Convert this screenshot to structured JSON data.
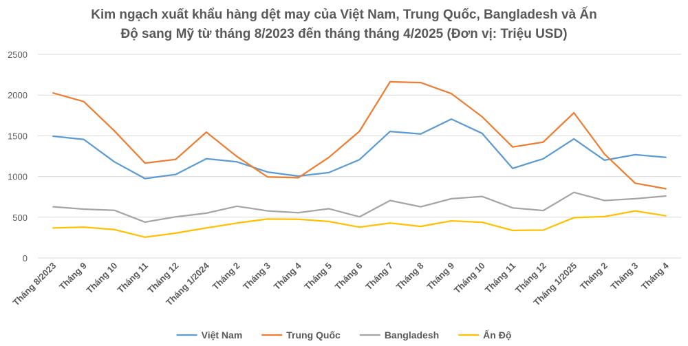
{
  "chart_data": {
    "type": "line",
    "title_line1": "Kim ngạch xuất khẩu hàng dệt may của Việt Nam, Trung Quốc, Bangladesh và Ấn",
    "title_line2": "Độ sang Mỹ từ tháng 8/2023 đến tháng tháng 4/2025 (Đơn vị: Triệu USD)",
    "xlabel": "",
    "ylabel": "",
    "ylim": [
      0,
      2500
    ],
    "yticks": [
      "0",
      "500",
      "1000",
      "1500",
      "2000",
      "2500"
    ],
    "ytick_values": [
      0,
      500,
      1000,
      1500,
      2000,
      2500
    ],
    "grid": true,
    "legend_position": "bottom",
    "categories": [
      "Tháng 8/2023",
      "Tháng 9",
      "Tháng 10",
      "Tháng 11",
      "Tháng 12",
      "Tháng 1/2024",
      "Tháng 2",
      "Tháng 3",
      "Tháng 4",
      "Tháng 5",
      "Tháng 6",
      "Tháng 7",
      "Tháng 8",
      "Tháng 9",
      "Tháng 10",
      "Tháng 11",
      "Tháng 12",
      "Tháng 1/2025",
      "Tháng 2",
      "Tháng 3",
      "Tháng 4"
    ],
    "series": [
      {
        "name": "Việt Nam",
        "color": "#5b9bd5",
        "values": [
          1495,
          1455,
          1180,
          975,
          1025,
          1218,
          1180,
          1055,
          1005,
          1048,
          1207,
          1553,
          1522,
          1705,
          1530,
          1100,
          1218,
          1462,
          1200,
          1268,
          1235
        ]
      },
      {
        "name": "Trung Quốc",
        "color": "#ed7d31",
        "values": [
          2025,
          1920,
          1560,
          1165,
          1210,
          1545,
          1245,
          995,
          985,
          1235,
          1555,
          2163,
          2153,
          2018,
          1735,
          1362,
          1422,
          1782,
          1275,
          918,
          850
        ]
      },
      {
        "name": "Bangladesh",
        "color": "#a5a5a5",
        "values": [
          628,
          600,
          585,
          440,
          505,
          550,
          635,
          578,
          555,
          605,
          505,
          705,
          628,
          727,
          755,
          615,
          582,
          805,
          705,
          727,
          760
        ]
      },
      {
        "name": "Ấn Độ",
        "color": "#ffc000",
        "values": [
          368,
          378,
          348,
          255,
          305,
          368,
          428,
          478,
          475,
          448,
          378,
          428,
          388,
          455,
          438,
          338,
          342,
          495,
          508,
          578,
          518
        ]
      }
    ]
  }
}
